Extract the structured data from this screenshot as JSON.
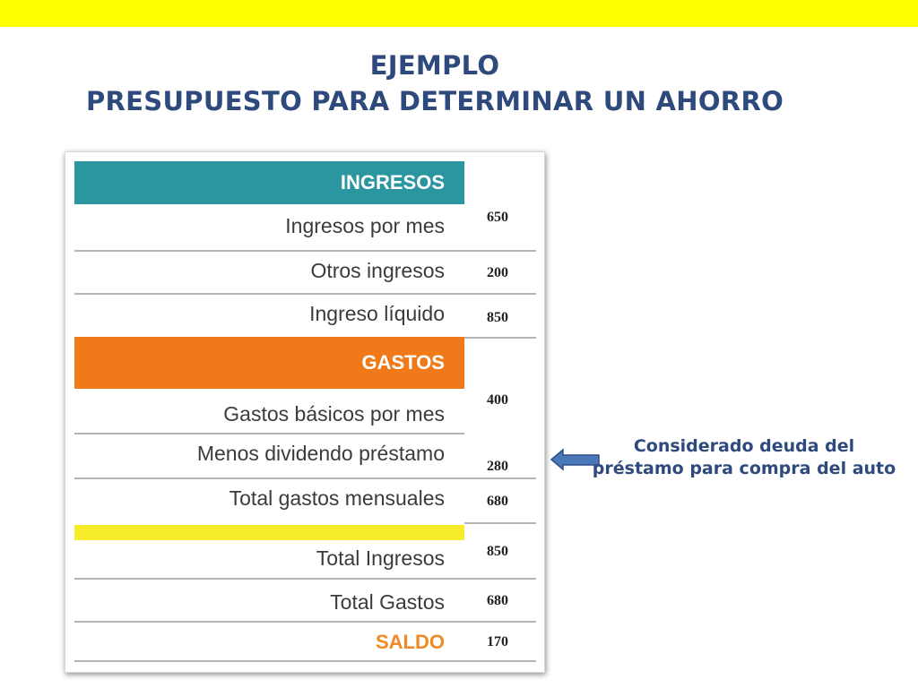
{
  "colors": {
    "top_bar": "#ffff00",
    "title": "#2e4a7d",
    "ingresos_header": "#2b95a0",
    "gastos_header": "#f07a1a",
    "highlight_row": "#f7ec2a",
    "saldo_text": "#f08a24",
    "arrow": "#4a78b8"
  },
  "title": {
    "line1": "EJEMPLO",
    "line2": "PRESUPUESTO PARA DETERMINAR UN AHORRO"
  },
  "table": {
    "ingresos_header": "INGRESOS",
    "gastos_header": "GASTOS",
    "rows": {
      "ingresos_por_mes": {
        "label": "Ingresos por mes",
        "value": "650"
      },
      "otros_ingresos": {
        "label": "Otros ingresos",
        "value": "200"
      },
      "ingreso_liquido": {
        "label": "Ingreso líquido",
        "value": "850"
      },
      "gastos_basicos": {
        "label": "Gastos básicos por mes",
        "value": "400"
      },
      "menos_dividendo": {
        "label": "Menos dividendo préstamo",
        "value": "280"
      },
      "total_gastos_mensuales": {
        "label": "Total gastos mensuales",
        "value": "680"
      },
      "total_ingresos": {
        "label": "Total Ingresos",
        "value": "850"
      },
      "total_gastos": {
        "label": "Total Gastos",
        "value": "680"
      },
      "saldo": {
        "label": "SALDO",
        "value": "170"
      }
    }
  },
  "annotation": {
    "line1": "Considerado deuda del",
    "line2": "préstamo para compra del auto",
    "arrow_icon": "left-arrow-icon"
  }
}
